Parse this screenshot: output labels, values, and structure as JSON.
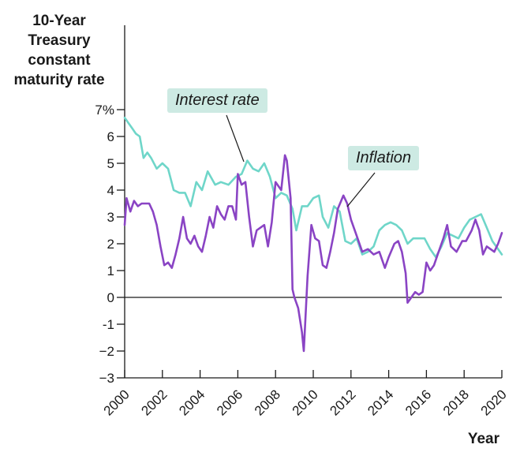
{
  "chart_data": {
    "type": "line",
    "ylabel_lines": [
      "10-Year",
      "Treasury",
      "constant",
      "maturity rate"
    ],
    "xlabel": "Year",
    "ylim": [
      -3,
      7
    ],
    "xlim": [
      2000,
      2020
    ],
    "ytick_values": [
      7,
      6,
      5,
      4,
      3,
      2,
      1,
      0,
      -1,
      -2,
      -3
    ],
    "ytick_labels": [
      "7%",
      "6",
      "5",
      "4",
      "3",
      "2",
      "1",
      "0",
      "-1",
      "−2",
      "−3"
    ],
    "xtick_values": [
      2000,
      2002,
      2004,
      2006,
      2008,
      2010,
      2012,
      2014,
      2016,
      2018,
      2020
    ],
    "xtick_labels": [
      "2000",
      "2002",
      "2004",
      "2006",
      "2008",
      "2010",
      "2012",
      "2014",
      "2016",
      "2018",
      "2020"
    ],
    "series": [
      {
        "name": "Interest rate",
        "color": "#6fd6c9",
        "x": [
          2000.0,
          2000.2,
          2000.4,
          2000.6,
          2000.8,
          2001.0,
          2001.2,
          2001.4,
          2001.7,
          2002.0,
          2002.3,
          2002.6,
          2002.9,
          2003.2,
          2003.5,
          2003.8,
          2004.1,
          2004.4,
          2004.8,
          2005.1,
          2005.5,
          2005.9,
          2006.2,
          2006.5,
          2006.8,
          2007.1,
          2007.4,
          2007.7,
          2008.0,
          2008.3,
          2008.6,
          2008.9,
          2009.1,
          2009.4,
          2009.7,
          2010.0,
          2010.3,
          2010.5,
          2010.8,
          2011.1,
          2011.4,
          2011.7,
          2012.0,
          2012.3,
          2012.6,
          2012.9,
          2013.2,
          2013.5,
          2013.8,
          2014.1,
          2014.4,
          2014.7,
          2015.0,
          2015.3,
          2015.6,
          2015.9,
          2016.2,
          2016.5,
          2016.8,
          2017.1,
          2017.4,
          2017.7,
          2018.0,
          2018.3,
          2018.6,
          2018.9,
          2019.2,
          2019.5,
          2019.8,
          2020.0
        ],
        "values": [
          6.7,
          6.5,
          6.3,
          6.1,
          6.0,
          5.2,
          5.4,
          5.2,
          4.8,
          5.0,
          4.8,
          4.0,
          3.9,
          3.9,
          3.4,
          4.3,
          4.0,
          4.7,
          4.2,
          4.3,
          4.2,
          4.5,
          4.6,
          5.1,
          4.8,
          4.7,
          5.0,
          4.5,
          3.7,
          3.9,
          3.8,
          3.3,
          2.5,
          3.4,
          3.4,
          3.7,
          3.8,
          3.0,
          2.6,
          3.4,
          3.2,
          2.1,
          2.0,
          2.2,
          1.6,
          1.7,
          1.9,
          2.5,
          2.7,
          2.8,
          2.7,
          2.5,
          2.0,
          2.2,
          2.2,
          2.2,
          1.8,
          1.5,
          1.9,
          2.4,
          2.3,
          2.2,
          2.6,
          2.9,
          3.0,
          3.1,
          2.6,
          2.1,
          1.8,
          1.6
        ]
      },
      {
        "name": "Inflation",
        "color": "#8a44c4",
        "x": [
          2000.0,
          2000.1,
          2000.3,
          2000.5,
          2000.7,
          2000.9,
          2001.1,
          2001.3,
          2001.5,
          2001.7,
          2001.9,
          2002.1,
          2002.3,
          2002.5,
          2002.7,
          2002.9,
          2003.1,
          2003.3,
          2003.5,
          2003.7,
          2003.9,
          2004.1,
          2004.3,
          2004.5,
          2004.7,
          2004.9,
          2005.1,
          2005.3,
          2005.5,
          2005.7,
          2005.9,
          2006.0,
          2006.2,
          2006.4,
          2006.6,
          2006.8,
          2007.0,
          2007.2,
          2007.4,
          2007.6,
          2007.8,
          2008.0,
          2008.3,
          2008.5,
          2008.6,
          2008.8,
          2008.9,
          2009.0,
          2009.2,
          2009.4,
          2009.5,
          2009.7,
          2009.9,
          2010.1,
          2010.3,
          2010.5,
          2010.7,
          2010.9,
          2011.1,
          2011.3,
          2011.6,
          2011.8,
          2012.0,
          2012.3,
          2012.6,
          2012.9,
          2013.2,
          2013.5,
          2013.8,
          2014.0,
          2014.3,
          2014.5,
          2014.7,
          2014.9,
          2015.0,
          2015.2,
          2015.4,
          2015.6,
          2015.8,
          2016.0,
          2016.2,
          2016.4,
          2016.6,
          2016.9,
          2017.1,
          2017.3,
          2017.6,
          2017.9,
          2018.1,
          2018.4,
          2018.6,
          2018.8,
          2019.0,
          2019.2,
          2019.4,
          2019.6,
          2019.8,
          2020.0
        ],
        "values": [
          2.7,
          3.7,
          3.2,
          3.6,
          3.4,
          3.5,
          3.5,
          3.5,
          3.2,
          2.7,
          1.9,
          1.2,
          1.3,
          1.1,
          1.6,
          2.2,
          3.0,
          2.2,
          2.0,
          2.3,
          1.9,
          1.7,
          2.3,
          3.0,
          2.6,
          3.4,
          3.1,
          2.9,
          3.4,
          3.4,
          2.9,
          4.6,
          4.2,
          4.3,
          3.0,
          1.9,
          2.5,
          2.6,
          2.7,
          1.9,
          2.8,
          4.3,
          4.0,
          5.3,
          5.1,
          3.7,
          0.3,
          0.0,
          -0.4,
          -1.3,
          -2.0,
          0.8,
          2.7,
          2.2,
          2.1,
          1.2,
          1.1,
          1.7,
          2.4,
          3.3,
          3.8,
          3.5,
          2.9,
          2.3,
          1.7,
          1.8,
          1.6,
          1.7,
          1.1,
          1.5,
          2.0,
          2.1,
          1.7,
          0.9,
          -0.2,
          0.0,
          0.2,
          0.1,
          0.2,
          1.3,
          1.0,
          1.2,
          1.6,
          2.2,
          2.7,
          1.9,
          1.7,
          2.1,
          2.1,
          2.5,
          2.9,
          2.5,
          1.6,
          1.9,
          1.8,
          1.7,
          2.0,
          2.4
        ]
      }
    ],
    "annotations": [
      {
        "text": "Interest rate",
        "series": "Interest rate"
      },
      {
        "text": "Inflation",
        "series": "Inflation"
      }
    ]
  }
}
